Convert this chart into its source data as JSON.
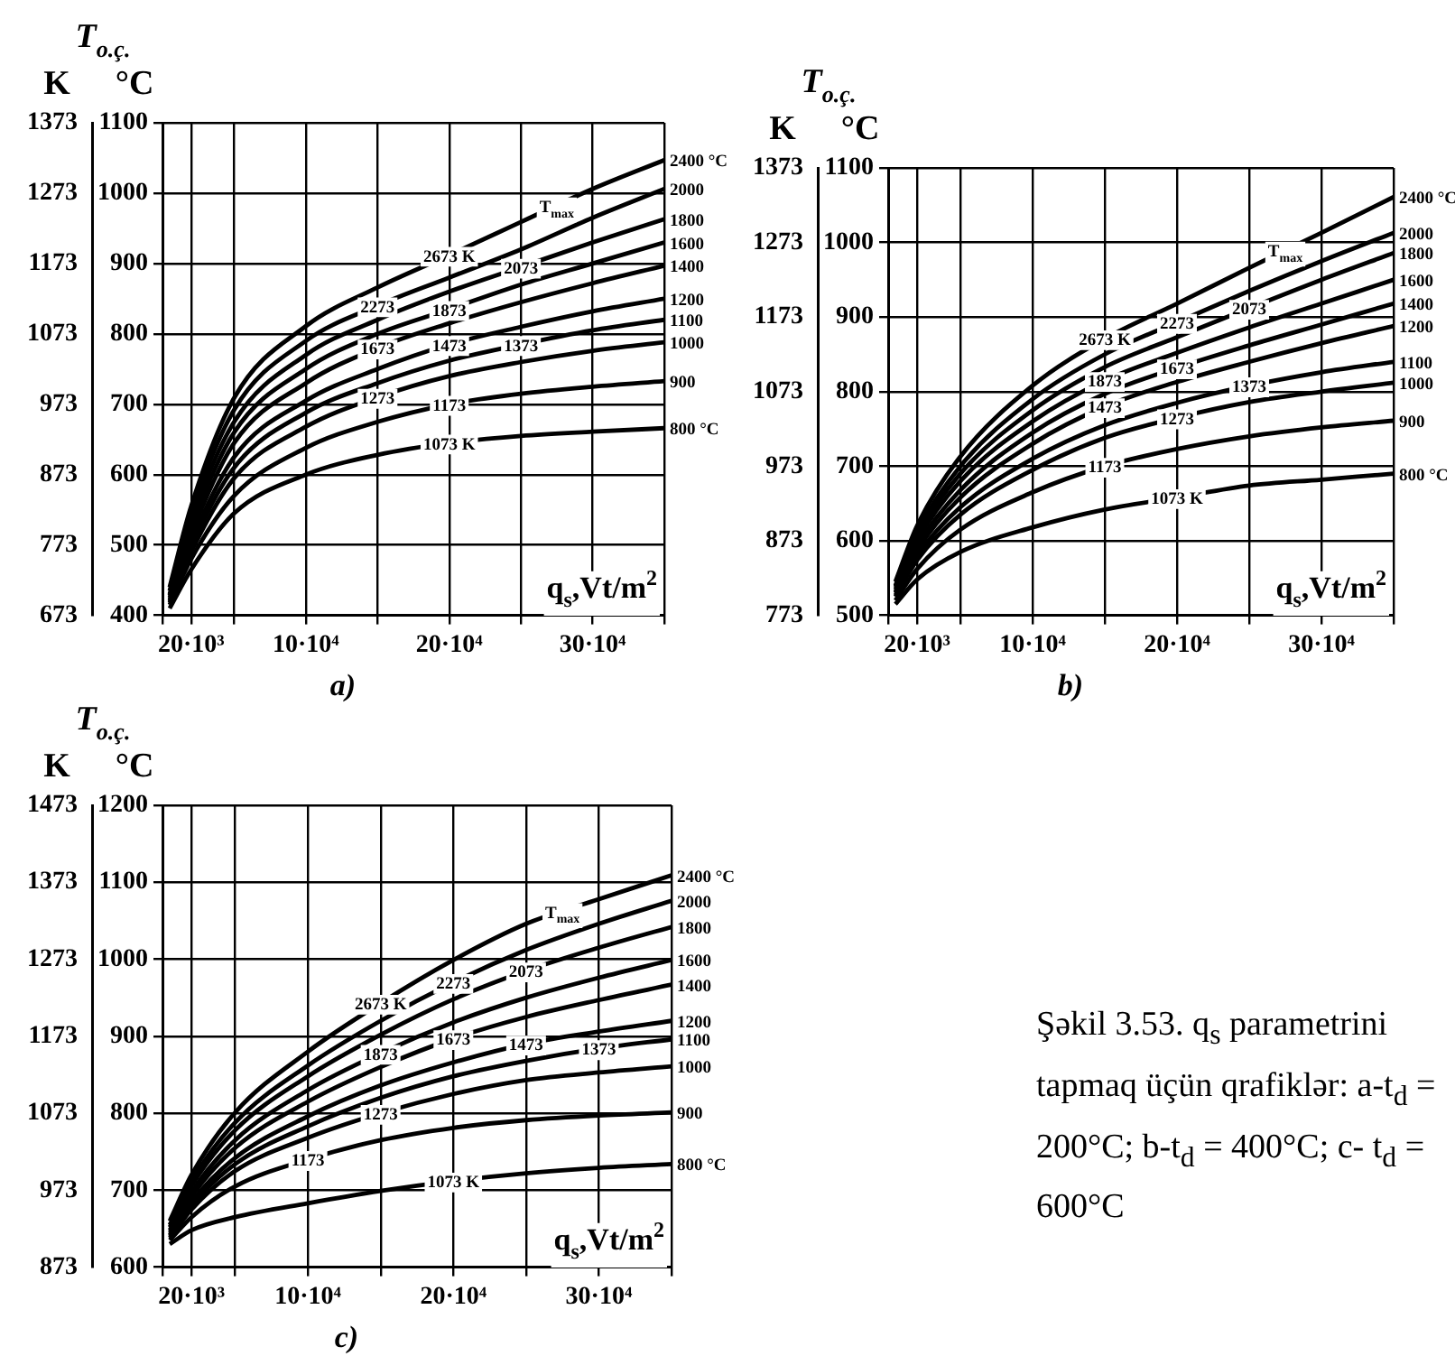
{
  "chart_data": [
    {
      "type": "line",
      "title": "a)",
      "xlabel": "q$_{s}$,Vt/m$^{2}$",
      "ylabel": "°C",
      "y2label": "K",
      "grid": true,
      "legend": false,
      "marker": "none",
      "line_style": "solid",
      "x": [
        5000,
        20000,
        50000,
        100000,
        150000,
        200000,
        250000,
        300000,
        350000
      ],
      "xlim": [
        0,
        350000
      ],
      "xticks": [
        {
          "value": 0,
          "label": null
        },
        {
          "value": 20000,
          "label": "20·10³"
        },
        {
          "value": 50000,
          "label": null
        },
        {
          "value": 100000,
          "label": "10·10⁴"
        },
        {
          "value": 150000,
          "label": null
        },
        {
          "value": 200000,
          "label": "20·10⁴"
        },
        {
          "value": 250000,
          "label": null
        },
        {
          "value": 300000,
          "label": "30·10⁴"
        },
        {
          "value": 350000,
          "label": null
        }
      ],
      "ylim": [
        400,
        1100
      ],
      "yticks": [
        400,
        500,
        600,
        700,
        800,
        900,
        1000,
        1100
      ],
      "y2lim": [
        673,
        1373
      ],
      "y2ticks": [
        673,
        773,
        873,
        973,
        1073,
        1173,
        1273,
        1373
      ],
      "series": [
        {
          "name": "2400 °C",
          "color": "#000000",
          "values": [
            440,
            555,
            709,
            811,
            866,
            912,
            959,
            1006,
            1047
          ]
        },
        {
          "name": "2000",
          "color": "#000000",
          "values": [
            435,
            545,
            692,
            790,
            840,
            880,
            920,
            965,
            1006
          ]
        },
        {
          "name": "1800",
          "color": "#000000",
          "values": [
            430,
            535,
            675,
            770,
            820,
            860,
            895,
            930,
            963
          ]
        },
        {
          "name": "1600",
          "color": "#000000",
          "values": [
            428,
            525,
            660,
            750,
            800,
            835,
            870,
            900,
            930
          ]
        },
        {
          "name": "1400",
          "color": "#000000",
          "values": [
            425,
            515,
            645,
            730,
            780,
            815,
            845,
            872,
            897
          ]
        },
        {
          "name": "1200",
          "color": "#000000",
          "values": [
            422,
            505,
            625,
            705,
            750,
            785,
            810,
            832,
            850
          ]
        },
        {
          "name": "1100",
          "color": "#000000",
          "values": [
            420,
            498,
            610,
            688,
            730,
            762,
            785,
            805,
            820
          ]
        },
        {
          "name": "1000",
          "color": "#000000",
          "values": [
            418,
            490,
            595,
            668,
            710,
            740,
            760,
            776,
            788
          ]
        },
        {
          "name": "900",
          "color": "#000000",
          "values": [
            415,
            480,
            570,
            638,
            675,
            700,
            715,
            725,
            733
          ]
        },
        {
          "name": "800 °C",
          "color": "#000000",
          "values": [
            410,
            465,
            545,
            600,
            628,
            645,
            655,
            661,
            666
          ]
        }
      ],
      "annotations": [
        "T$_{o.ç.}$",
        {
          "text": "2673 K",
          "x": 200000,
          "y": 912
        },
        {
          "text": "2273",
          "x": 150000,
          "y": 840
        },
        {
          "text": "2073",
          "x": 250000,
          "y": 895
        },
        {
          "text": "1873",
          "x": 200000,
          "y": 835
        },
        {
          "text": "1673",
          "x": 150000,
          "y": 780
        },
        {
          "text": "1473",
          "x": 200000,
          "y": 785
        },
        {
          "text": "1373",
          "x": 250000,
          "y": 785
        },
        {
          "text": "1273",
          "x": 150000,
          "y": 710
        },
        {
          "text": "1173",
          "x": 200000,
          "y": 700
        },
        {
          "text": "1073 K",
          "x": 200000,
          "y": 645
        },
        {
          "text": "T$_{max}$",
          "x": 275000,
          "y": 982
        }
      ]
    },
    {
      "type": "line",
      "title": "b)",
      "xlabel": "q$_{s}$,Vt/m$^{2}$",
      "ylabel": "°C",
      "y2label": "K",
      "grid": true,
      "legend": false,
      "marker": "none",
      "line_style": "solid",
      "x": [
        5000,
        20000,
        50000,
        100000,
        150000,
        200000,
        250000,
        300000,
        350000
      ],
      "xlim": [
        0,
        350000
      ],
      "xticks": [
        {
          "value": 0,
          "label": null
        },
        {
          "value": 20000,
          "label": "20·10³"
        },
        {
          "value": 50000,
          "label": null
        },
        {
          "value": 100000,
          "label": "10·10⁴"
        },
        {
          "value": 150000,
          "label": null
        },
        {
          "value": 200000,
          "label": "20·10⁴"
        },
        {
          "value": 250000,
          "label": null
        },
        {
          "value": 300000,
          "label": "30·10⁴"
        },
        {
          "value": 350000,
          "label": null
        }
      ],
      "ylim": [
        500,
        1100
      ],
      "yticks": [
        500,
        600,
        700,
        800,
        900,
        1000,
        1100
      ],
      "y2lim": [
        773,
        1373
      ],
      "y2ticks": [
        773,
        873,
        973,
        1073,
        1173,
        1273,
        1373
      ],
      "series": [
        {
          "name": "2400 °C",
          "color": "#000000",
          "values": [
            545,
            620,
            713,
            808,
            871,
            918,
            966,
            1013,
            1061
          ]
        },
        {
          "name": "2000",
          "color": "#000000",
          "values": [
            540,
            612,
            700,
            790,
            850,
            893,
            935,
            975,
            1013
          ]
        },
        {
          "name": "1800",
          "color": "#000000",
          "values": [
            538,
            606,
            690,
            775,
            833,
            873,
            912,
            950,
            986
          ]
        },
        {
          "name": "1600",
          "color": "#000000",
          "values": [
            535,
            600,
            680,
            760,
            815,
            852,
            886,
            918,
            950
          ]
        },
        {
          "name": "1400",
          "color": "#000000",
          "values": [
            532,
            593,
            668,
            745,
            797,
            832,
            862,
            890,
            918
          ]
        },
        {
          "name": "1200",
          "color": "#000000",
          "values": [
            530,
            587,
            658,
            730,
            780,
            813,
            840,
            865,
            888
          ]
        },
        {
          "name": "1100",
          "color": "#000000",
          "values": [
            527,
            580,
            645,
            710,
            755,
            785,
            808,
            826,
            840
          ]
        },
        {
          "name": "1000",
          "color": "#000000",
          "values": [
            525,
            574,
            635,
            695,
            738,
            765,
            786,
            800,
            812
          ]
        },
        {
          "name": "900",
          "color": "#000000",
          "values": [
            520,
            562,
            615,
            665,
            700,
            723,
            740,
            752,
            761
          ]
        },
        {
          "name": "800 °C",
          "color": "#000000",
          "values": [
            515,
            548,
            585,
            618,
            642,
            658,
            674,
            682,
            690
          ]
        }
      ],
      "annotations": [
        "T$_{o.ç.}$",
        {
          "text": "2673 K",
          "x": 150000,
          "y": 871
        },
        {
          "text": "2273",
          "x": 200000,
          "y": 893
        },
        {
          "text": "2073",
          "x": 250000,
          "y": 912
        },
        {
          "text": "1873",
          "x": 150000,
          "y": 815
        },
        {
          "text": "1673",
          "x": 200000,
          "y": 832
        },
        {
          "text": "1473",
          "x": 150000,
          "y": 780
        },
        {
          "text": "1373",
          "x": 250000,
          "y": 808
        },
        {
          "text": "1273",
          "x": 200000,
          "y": 765
        },
        {
          "text": "1173",
          "x": 150000,
          "y": 700
        },
        {
          "text": "1073 K",
          "x": 200000,
          "y": 658
        },
        {
          "text": "T$_{max}$",
          "x": 275000,
          "y": 990
        }
      ]
    },
    {
      "type": "line",
      "title": "c)",
      "xlabel": "q$_{s}$,Vt/m$^{2}$",
      "ylabel": "°C",
      "y2label": "K",
      "grid": true,
      "legend": false,
      "marker": "none",
      "line_style": "solid",
      "x": [
        5000,
        20000,
        50000,
        100000,
        150000,
        200000,
        250000,
        300000,
        350000
      ],
      "xlim": [
        0,
        350000
      ],
      "xticks": [
        {
          "value": 0,
          "label": null
        },
        {
          "value": 20000,
          "label": "20·10³"
        },
        {
          "value": 50000,
          "label": null
        },
        {
          "value": 100000,
          "label": "10·10⁴"
        },
        {
          "value": 150000,
          "label": null
        },
        {
          "value": 200000,
          "label": "20·10⁴"
        },
        {
          "value": 250000,
          "label": null
        },
        {
          "value": 300000,
          "label": "30·10⁴"
        },
        {
          "value": 350000,
          "label": null
        }
      ],
      "ylim": [
        600,
        1200
      ],
      "yticks": [
        600,
        700,
        800,
        900,
        1000,
        1100,
        1200
      ],
      "y2lim": [
        873,
        1473
      ],
      "y2ticks": [
        873,
        973,
        1073,
        1173,
        1273,
        1373,
        1473
      ],
      "series": [
        {
          "name": "2400 °C",
          "color": "#000000",
          "values": [
            660,
            720,
            801,
            880,
            943,
            999,
            1046,
            1078,
            1109
          ]
        },
        {
          "name": "2000",
          "color": "#000000",
          "values": [
            655,
            712,
            788,
            862,
            920,
            970,
            1012,
            1046,
            1076
          ]
        },
        {
          "name": "1800",
          "color": "#000000",
          "values": [
            652,
            706,
            778,
            848,
            902,
            948,
            985,
            1015,
            1042
          ]
        },
        {
          "name": "1600",
          "color": "#000000",
          "values": [
            648,
            698,
            765,
            830,
            878,
            918,
            950,
            976,
            999
          ]
        },
        {
          "name": "1400",
          "color": "#000000",
          "values": [
            645,
            692,
            755,
            815,
            860,
            897,
            925,
            947,
            967
          ]
        },
        {
          "name": "1200",
          "color": "#000000",
          "values": [
            642,
            685,
            742,
            796,
            836,
            866,
            890,
            906,
            920
          ]
        },
        {
          "name": "1100",
          "color": "#000000",
          "values": [
            640,
            680,
            734,
            783,
            820,
            848,
            868,
            884,
            896
          ]
        },
        {
          "name": "1000",
          "color": "#000000",
          "values": [
            638,
            675,
            725,
            768,
            800,
            825,
            843,
            853,
            861
          ]
        },
        {
          "name": "900",
          "color": "#000000",
          "values": [
            635,
            665,
            705,
            740,
            765,
            781,
            791,
            797,
            801
          ]
        },
        {
          "name": "800 °C",
          "color": "#000000",
          "values": [
            630,
            648,
            665,
            683,
            699,
            712,
            722,
            729,
            734
          ]
        }
      ],
      "annotations": [
        "T$_{o.ç.}$",
        {
          "text": "2673 K",
          "x": 150000,
          "y": 943
        },
        {
          "text": "2273",
          "x": 200000,
          "y": 970
        },
        {
          "text": "2073",
          "x": 250000,
          "y": 985
        },
        {
          "text": "1873",
          "x": 150000,
          "y": 878
        },
        {
          "text": "1673",
          "x": 200000,
          "y": 897
        },
        {
          "text": "1473",
          "x": 250000,
          "y": 890
        },
        {
          "text": "1373",
          "x": 300000,
          "y": 884
        },
        {
          "text": "1273",
          "x": 150000,
          "y": 800
        },
        {
          "text": "1173",
          "x": 100000,
          "y": 740
        },
        {
          "text": "1073 K",
          "x": 200000,
          "y": 712
        },
        {
          "text": "T$_{max}$",
          "x": 275000,
          "y": 1062
        }
      ]
    },
    {
      "type": "other",
      "title": "Şəkil 3.53. q$_{s}$ parametrini tapmaq üçün qrafiklər: a-t$_{d}$ = 200°C; b-t$_{d}$ = 400°C; c- t$_{d}$ = 600°C"
    }
  ]
}
